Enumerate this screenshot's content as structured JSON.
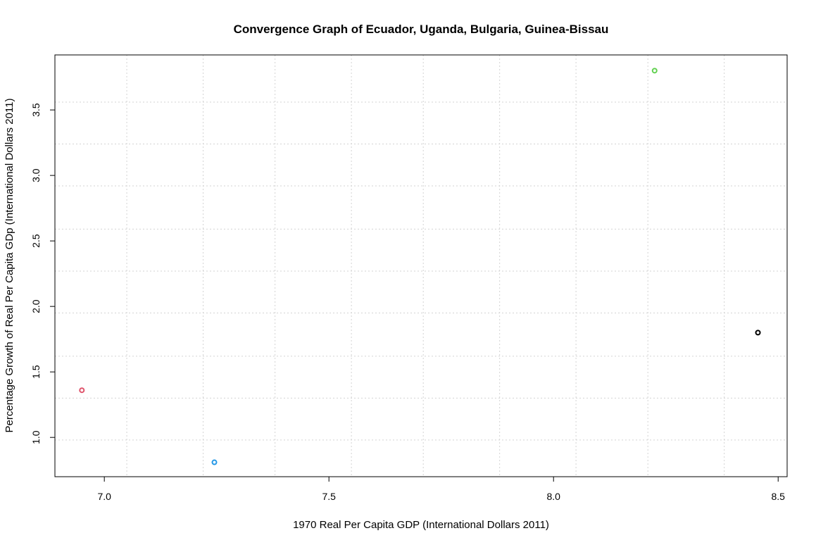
{
  "chart_data": {
    "type": "scatter",
    "title": "Convergence Graph of Ecuador, Uganda, Bulgaria, Guinea-Bissau",
    "xlabel": "1970 Real Per Capita GDP (International Dollars 2011)",
    "ylabel": "Percentage Growth of Real Per Capita GDp (International Dollars 2011)",
    "xlim": [
      6.89,
      8.52
    ],
    "ylim": [
      0.7,
      3.92
    ],
    "x_ticks": [
      7.0,
      7.5,
      8.0,
      8.5
    ],
    "x_tick_labels": [
      "7.0",
      "7.5",
      "8.0",
      "8.5"
    ],
    "y_ticks": [
      1.0,
      1.5,
      2.0,
      2.5,
      3.0,
      3.5
    ],
    "y_tick_labels": [
      "1.0",
      "1.5",
      "2.0",
      "2.5",
      "3.0",
      "3.5"
    ],
    "grid": true,
    "grid_x": [
      7.05,
      7.22,
      7.38,
      7.55,
      7.71,
      7.88,
      8.05,
      8.21,
      8.38
    ],
    "grid_y": [
      0.98,
      1.3,
      1.62,
      1.95,
      2.27,
      2.59,
      2.92,
      3.24,
      3.56
    ],
    "points": [
      {
        "x": 8.455,
        "y": 1.8,
        "color": "#000000"
      },
      {
        "x": 6.95,
        "y": 1.36,
        "color": "#DF536B"
      },
      {
        "x": 8.225,
        "y": 3.8,
        "color": "#61D04F"
      },
      {
        "x": 7.245,
        "y": 0.81,
        "color": "#2297E6"
      }
    ]
  }
}
